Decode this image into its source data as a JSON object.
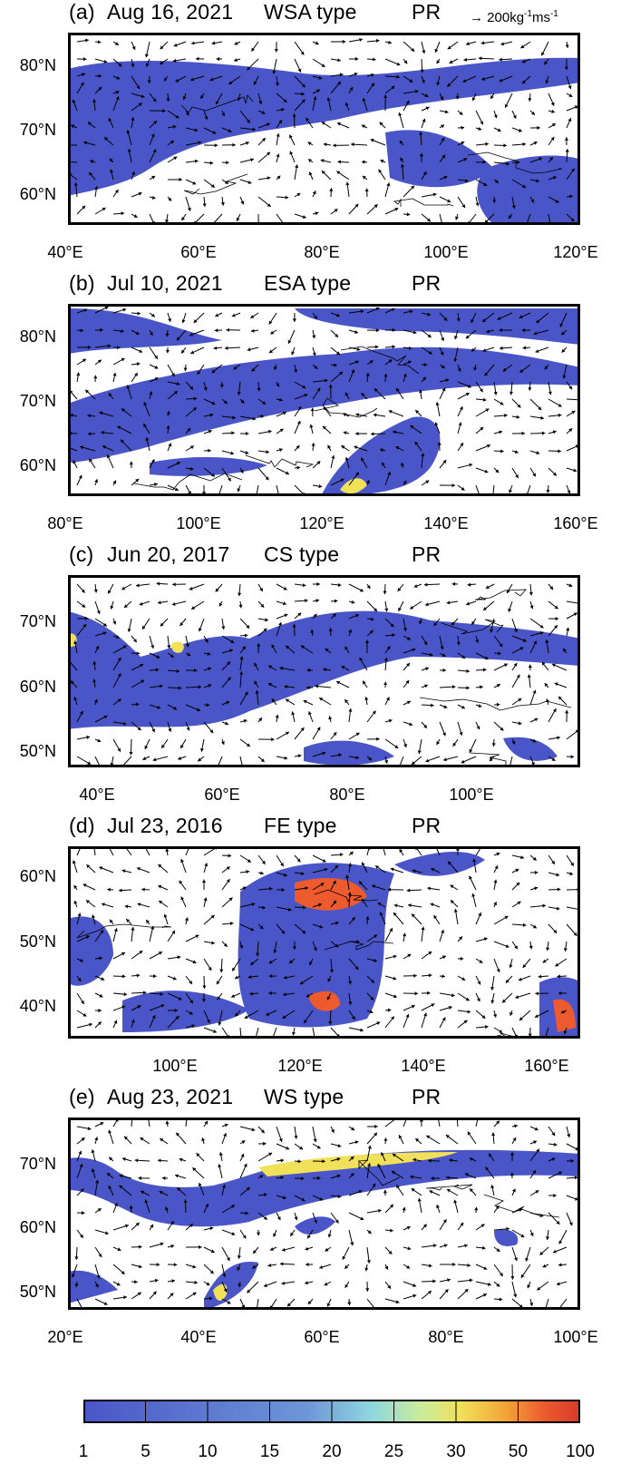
{
  "reference_vector": {
    "text": "200kg",
    "sup1": "-1",
    "mid": "ms",
    "sup2": "-1",
    "magnitude": 200
  },
  "panels": [
    {
      "label": "(a)",
      "date": "Aug 16, 2021",
      "type": "WSA type",
      "var": "PR",
      "yticks": [
        "80°N",
        "70°N",
        "60°N"
      ],
      "xticks": [
        "40°E",
        "60°E",
        "80°E",
        "100°E",
        "120°E"
      ],
      "seed": 11
    },
    {
      "label": "(b)",
      "date": "Jul 10, 2021",
      "type": "ESA type",
      "var": "PR",
      "yticks": [
        "80°N",
        "70°N",
        "60°N"
      ],
      "xticks": [
        "80°E",
        "100°E",
        "120°E",
        "140°E",
        "160°E"
      ],
      "seed": 23
    },
    {
      "label": "(c)",
      "date": "Jun 20, 2017",
      "type": "CS type",
      "var": "PR",
      "yticks": [
        "70°N",
        "60°N",
        "50°N"
      ],
      "xticks": [
        "40°E",
        "60°E",
        "80°E",
        "100°E"
      ],
      "seed": 37
    },
    {
      "label": "(d)",
      "date": "Jul 23, 2016",
      "type": "FE type",
      "var": "PR",
      "yticks": [
        "60°N",
        "50°N",
        "40°N"
      ],
      "xticks": [
        "100°E",
        "120°E",
        "140°E",
        "160°E"
      ],
      "seed": 41
    },
    {
      "label": "(e)",
      "date": "Aug 23, 2021",
      "type": "WS type",
      "var": "PR",
      "yticks": [
        "70°N",
        "60°N",
        "50°N"
      ],
      "xticks": [
        "20°E",
        "40°E",
        "60°E",
        "80°E",
        "100°E"
      ],
      "seed": 53
    }
  ],
  "colorbar": {
    "labels": [
      "1",
      "5",
      "10",
      "15",
      "20",
      "25",
      "30",
      "50",
      "100"
    ],
    "colors": [
      "#4a56c8",
      "#5d6fd0",
      "#7b9ad8",
      "#8fd6df",
      "#c9ec9c",
      "#f1e05a",
      "#f3a538",
      "#ec5a2e",
      "#d93a2b"
    ]
  },
  "colors": {
    "low": "#4a56c8",
    "mid": "#7ba6da",
    "high": "#e8412c"
  }
}
